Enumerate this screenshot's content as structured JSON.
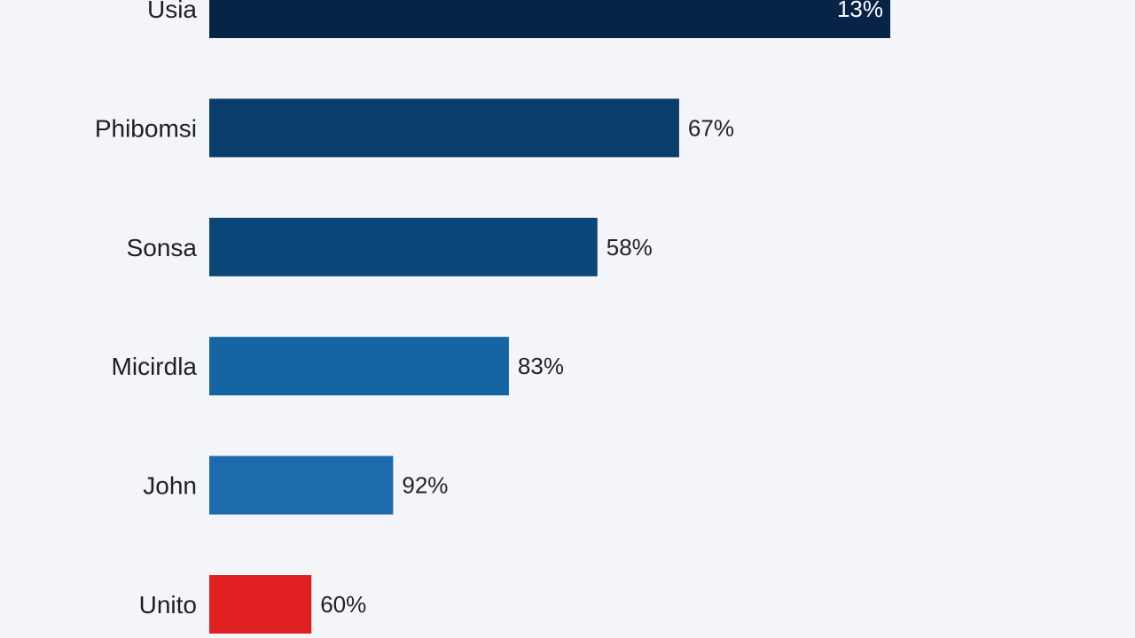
{
  "chart_data": {
    "type": "bar",
    "orientation": "horizontal",
    "categories": [
      "Usia",
      "Phibomsi",
      "Sonsa",
      "Micirdla",
      "John",
      "Unito"
    ],
    "values": [
      100,
      69,
      57,
      44,
      27,
      15
    ],
    "value_labels": [
      "13%",
      "67%",
      "58%",
      "83%",
      "92%",
      "60%"
    ],
    "xlim": [
      0,
      100
    ],
    "grid": false,
    "legend": "none"
  },
  "colors": {
    "background": "#f3f5f8",
    "bars": [
      "#072446",
      "#0b3d6b",
      "#0b4678",
      "#1564a4",
      "#1d6aad",
      "#e02020"
    ],
    "label_text": "#1f1f1f",
    "value_text_inside": "#ffffff",
    "value_text_outside": "#222222"
  }
}
